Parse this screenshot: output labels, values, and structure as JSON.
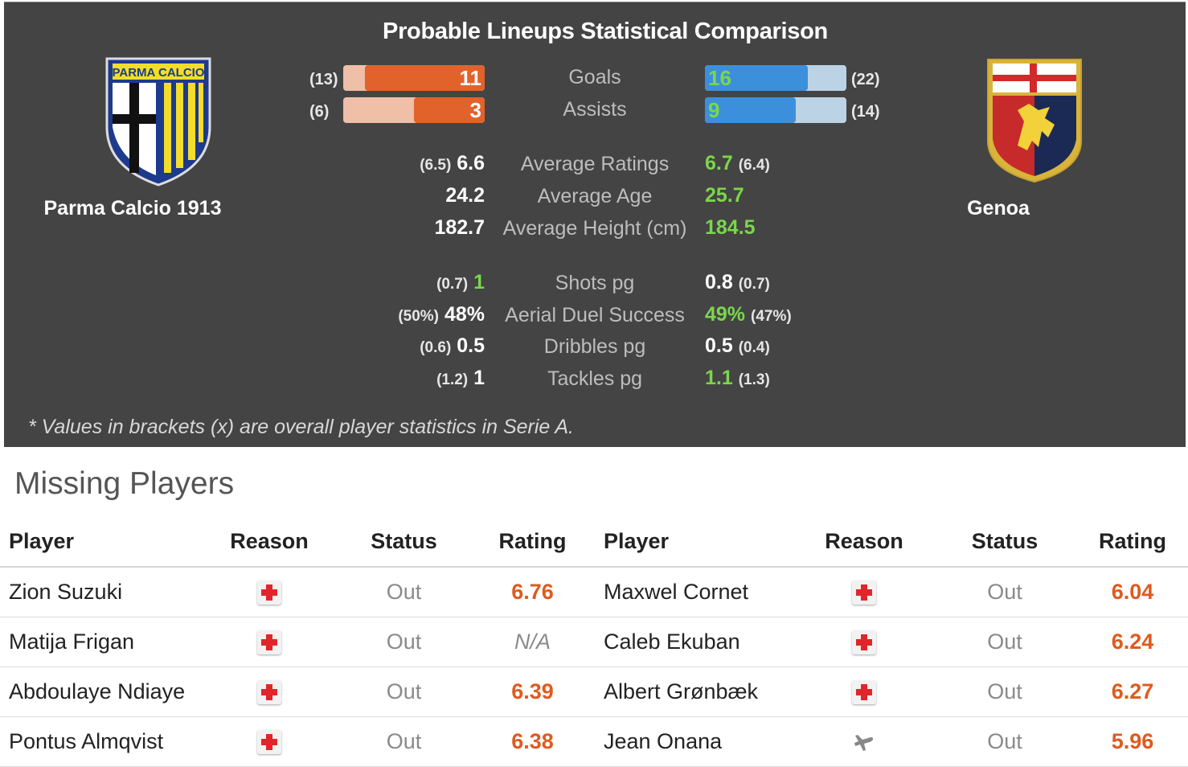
{
  "comparison": {
    "title": "Probable Lineups Statistical Comparison",
    "home_team": "Parma Calcio 1913",
    "away_team": "Genoa",
    "home_crest_text": "PARMA CALCIO",
    "colors": {
      "home_bar": "#e2622b",
      "home_bar_bg": "#efbfa7",
      "away_bar": "#3c8fdb",
      "away_bar_bg": "#bcd3e6",
      "highlight": "#7bd64b",
      "panel_bg": "#444444"
    },
    "bars": [
      {
        "label": "Goals",
        "home_value": "11",
        "home_total": "(13)",
        "away_value": "16",
        "away_total": "(22)",
        "home_fill": 0.846,
        "away_fill": 0.727
      },
      {
        "label": "Assists",
        "home_value": "3",
        "home_total": "(6)",
        "away_value": "9",
        "away_total": "(14)",
        "home_fill": 0.5,
        "away_fill": 0.643
      }
    ],
    "group1": [
      {
        "label": "Average Ratings",
        "home_bracket": "(6.5)",
        "home_value": "6.6",
        "away_value": "6.7",
        "away_bracket": "(6.4)",
        "winner": "away"
      },
      {
        "label": "Average Age",
        "home_bracket": "",
        "home_value": "24.2",
        "away_value": "25.7",
        "away_bracket": "",
        "winner": "away"
      },
      {
        "label": "Average Height (cm)",
        "home_bracket": "",
        "home_value": "182.7",
        "away_value": "184.5",
        "away_bracket": "",
        "winner": "away"
      }
    ],
    "group2": [
      {
        "label": "Shots pg",
        "home_bracket": "(0.7)",
        "home_value": "1",
        "away_value": "0.8",
        "away_bracket": "(0.7)",
        "winner": "home"
      },
      {
        "label": "Aerial Duel Success",
        "home_bracket": "(50%)",
        "home_value": "48%",
        "away_value": "49%",
        "away_bracket": "(47%)",
        "winner": "away"
      },
      {
        "label": "Dribbles pg",
        "home_bracket": "(0.6)",
        "home_value": "0.5",
        "away_value": "0.5",
        "away_bracket": "(0.4)",
        "winner": "none"
      },
      {
        "label": "Tackles pg",
        "home_bracket": "(1.2)",
        "home_value": "1",
        "away_value": "1.1",
        "away_bracket": "(1.3)",
        "winner": "away"
      }
    ],
    "footnote": "* Values in brackets (x) are overall player statistics in Serie A."
  },
  "missing": {
    "title": "Missing Players",
    "headers": [
      "Player",
      "Reason",
      "Status",
      "Rating",
      "Player",
      "Reason",
      "Status",
      "Rating"
    ],
    "rows": [
      {
        "home_player": "Zion Suzuki",
        "home_reason": "injury-icon",
        "home_status": "Out",
        "home_rating": "6.76",
        "away_player": "Maxwel Cornet",
        "away_reason": "injury-icon",
        "away_status": "Out",
        "away_rating": "6.04"
      },
      {
        "home_player": "Matija Frigan",
        "home_reason": "injury-icon",
        "home_status": "Out",
        "home_rating": "N/A",
        "away_player": "Caleb Ekuban",
        "away_reason": "injury-icon",
        "away_status": "Out",
        "away_rating": "6.24"
      },
      {
        "home_player": "Abdoulaye Ndiaye",
        "home_reason": "injury-icon",
        "home_status": "Out",
        "home_rating": "6.39",
        "away_player": "Albert Grønbæk",
        "away_reason": "injury-icon",
        "away_status": "Out",
        "away_rating": "6.27"
      },
      {
        "home_player": "Pontus Almqvist",
        "home_reason": "injury-icon",
        "home_status": "Out",
        "home_rating": "6.38",
        "away_player": "Jean Onana",
        "away_reason": "plane-icon",
        "away_status": "Out",
        "away_rating": "5.96"
      }
    ]
  }
}
